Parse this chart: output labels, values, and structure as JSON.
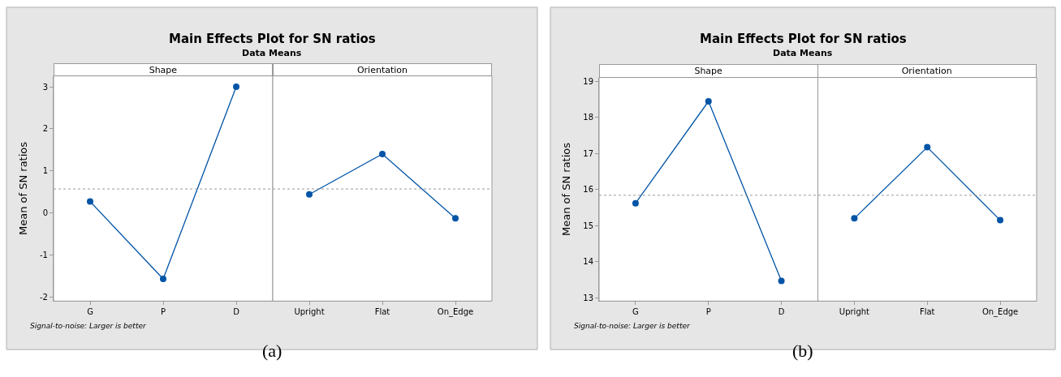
{
  "chart_data": [
    {
      "type": "line",
      "title": "Main Effects Plot for SN ratios",
      "subtitle": "Data Means",
      "ylabel": "Mean of SN ratios",
      "categories": [
        "G",
        "P",
        "D",
        "Upright",
        "Flat",
        "On_Edge"
      ],
      "series": [
        {
          "color": "#0054a6",
          "values": [
            0.27,
            -1.57,
            3.0,
            null,
            null,
            null
          ]
        },
        {
          "color": "#0054a6",
          "values": [
            null,
            null,
            null,
            0.44,
            1.4,
            -0.13
          ]
        }
      ],
      "ylim": [
        -2.1,
        3.26
      ],
      "yticks": [
        -2,
        -1,
        0,
        1,
        2,
        3
      ],
      "marker": "circle",
      "line_style": "solid",
      "ref_lines": [
        {
          "axis": "y",
          "value": 0.57,
          "color": "#999999",
          "line_style": "dotted"
        }
      ],
      "annotations": [
        "Shape",
        "Orientation",
        "Signal-to-noise: Larger is better",
        "(a)"
      ]
    },
    {
      "type": "line",
      "title": "Main Effects Plot for SN ratios",
      "subtitle": "Data Means",
      "ylabel": "Mean of SN ratios",
      "categories": [
        "G",
        "P",
        "D",
        "Upright",
        "Flat",
        "On_Edge"
      ],
      "series": [
        {
          "color": "#0054a6",
          "values": [
            15.62,
            18.44,
            13.47,
            null,
            null,
            null
          ]
        },
        {
          "color": "#0054a6",
          "values": [
            null,
            null,
            null,
            15.2,
            17.17,
            15.15
          ]
        }
      ],
      "ylim": [
        12.91,
        19.1
      ],
      "yticks": [
        13,
        14,
        15,
        16,
        17,
        18,
        19
      ],
      "marker": "circle",
      "line_style": "solid",
      "ref_lines": [
        {
          "axis": "y",
          "value": 15.84,
          "color": "#999999",
          "line_style": "dotted"
        }
      ],
      "annotations": [
        "Shape",
        "Orientation",
        "Signal-to-noise: Larger is better",
        "(b)"
      ]
    }
  ]
}
